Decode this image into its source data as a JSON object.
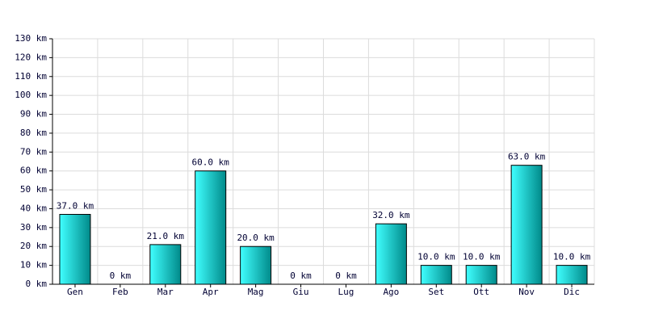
{
  "chart_data": {
    "type": "bar",
    "categories": [
      "Gen",
      "Feb",
      "Mar",
      "Apr",
      "Mag",
      "Giu",
      "Lug",
      "Ago",
      "Set",
      "Ott",
      "Nov",
      "Dic"
    ],
    "values": [
      37,
      0,
      21,
      60,
      20,
      0,
      0,
      32,
      10,
      10,
      63,
      10
    ],
    "value_labels": [
      "37.0 km",
      "0 km",
      "21.0 km",
      "60.0 km",
      "20.0 km",
      "0 km",
      "0 km",
      "32.0 km",
      "10.0 km",
      "10.0 km",
      "63.0 km",
      "10.0 km"
    ],
    "color": "#00c8c8",
    "ylim": [
      0,
      130
    ],
    "yticks": [
      {
        "value": 0,
        "label": "0 km"
      },
      {
        "value": 10,
        "label": "10 km"
      },
      {
        "value": 20,
        "label": "20 km"
      },
      {
        "value": 30,
        "label": "30 km"
      },
      {
        "value": 40,
        "label": "40 km"
      },
      {
        "value": 50,
        "label": "50 km"
      },
      {
        "value": 60,
        "label": "60 km"
      },
      {
        "value": 70,
        "label": "70 km"
      },
      {
        "value": 80,
        "label": "80 km"
      },
      {
        "value": 90,
        "label": "90 km"
      },
      {
        "value": 100,
        "label": "100 km"
      },
      {
        "value": 110,
        "label": "110 km"
      },
      {
        "value": 120,
        "label": "120 km"
      },
      {
        "value": 130,
        "label": "130 km"
      }
    ],
    "grid": true
  }
}
